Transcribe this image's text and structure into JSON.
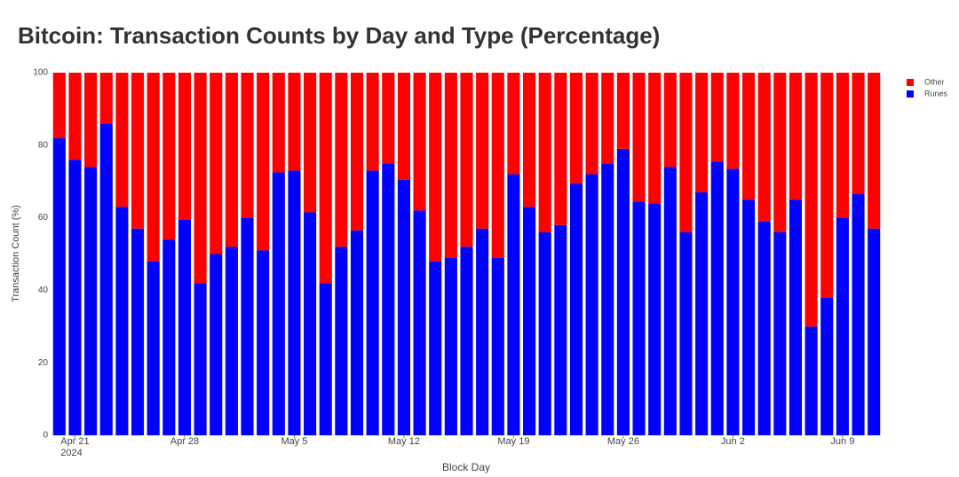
{
  "chart_data": {
    "type": "stacked_bar_percent",
    "title": "Bitcoin: Transaction Counts by Day and Type (Percentage)",
    "x_label": "Block Day",
    "y_label": "Transaction Count (%)",
    "x": [
      "2024-04-20",
      "2024-04-21",
      "2024-04-22",
      "2024-04-23",
      "2024-04-24",
      "2024-04-25",
      "2024-04-26",
      "2024-04-27",
      "2024-04-28",
      "2024-04-29",
      "2024-04-30",
      "2024-05-01",
      "2024-05-02",
      "2024-05-03",
      "2024-05-04",
      "2024-05-05",
      "2024-05-06",
      "2024-05-07",
      "2024-05-08",
      "2024-05-09",
      "2024-05-10",
      "2024-05-11",
      "2024-05-12",
      "2024-05-13",
      "2024-05-14",
      "2024-05-15",
      "2024-05-16",
      "2024-05-17",
      "2024-05-18",
      "2024-05-19",
      "2024-05-20",
      "2024-05-21",
      "2024-05-22",
      "2024-05-23",
      "2024-05-24",
      "2024-05-25",
      "2024-05-26",
      "2024-05-27",
      "2024-05-28",
      "2024-05-29",
      "2024-05-30",
      "2024-05-31",
      "2024-06-01",
      "2024-06-02",
      "2024-06-03",
      "2024-06-04",
      "2024-06-05",
      "2024-06-06",
      "2024-06-07",
      "2024-06-08",
      "2024-06-09",
      "2024-06-10",
      "2024-06-11"
    ],
    "series": [
      {
        "name": "Runes",
        "color": "#0000ff",
        "values": [
          82,
          76,
          74,
          86,
          63,
          57,
          48,
          54,
          59.5,
          42,
          50,
          52,
          60,
          51,
          72.5,
          73,
          61.5,
          42,
          52,
          56.5,
          73,
          75,
          70.5,
          62,
          48,
          49,
          52,
          57,
          49,
          72,
          63,
          56,
          58,
          69.5,
          72,
          75,
          79,
          64.5,
          64,
          74,
          56,
          67,
          75.5,
          73.5,
          65,
          59,
          56,
          65,
          30,
          38,
          60,
          66.5,
          57
        ]
      },
      {
        "name": "Other",
        "color": "#ff0000",
        "values": [
          18,
          24,
          26,
          14,
          37,
          43,
          52,
          46,
          40.5,
          58,
          50,
          48,
          40,
          49,
          27.5,
          27,
          38.5,
          58,
          48,
          43.5,
          27,
          25,
          29.5,
          38,
          52,
          51,
          48,
          43,
          51,
          28,
          37,
          44,
          42,
          30.5,
          28,
          25,
          21,
          35.5,
          36,
          26,
          44,
          33,
          24.5,
          26.5,
          35,
          41,
          44,
          35,
          70,
          62,
          40,
          33.5,
          43
        ]
      }
    ],
    "legend_order": [
      1,
      0
    ],
    "ylim": [
      0,
      100
    ],
    "yticks": [
      0,
      20,
      40,
      60,
      80,
      100
    ],
    "xticks": [
      {
        "value": "2024-04-21",
        "label": "Apr 21\n2024"
      },
      {
        "value": "2024-04-28",
        "label": "Apr 28"
      },
      {
        "value": "2024-05-05",
        "label": "May 5"
      },
      {
        "value": "2024-05-12",
        "label": "May 12"
      },
      {
        "value": "2024-05-19",
        "label": "May 19"
      },
      {
        "value": "2024-05-26",
        "label": "May 26"
      },
      {
        "value": "2024-06-02",
        "label": "Jun 2"
      },
      {
        "value": "2024-06-09",
        "label": "Jun 9"
      }
    ],
    "legend_position": "top-right"
  }
}
